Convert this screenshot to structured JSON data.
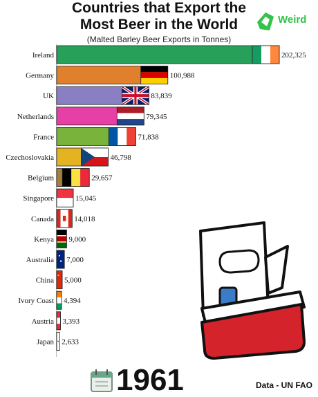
{
  "header": {
    "title_line1": "Countries that Export the",
    "title_line2": "Most Beer in the World",
    "subtitle": "(Malted Barley Beer Exports in Tonnes)",
    "logo_text": "Weird"
  },
  "footer": {
    "year": "1961",
    "source": "Data - UN FAO"
  },
  "icons": {
    "calendar": "calendar-icon",
    "cooler": "beer-cooler-illustration",
    "logo": "leaf-logo-icon"
  },
  "chart_data": {
    "type": "bar",
    "orientation": "horizontal",
    "title": "Countries that Export the Most Beer in the World",
    "subtitle": "(Malted Barley Beer Exports in Tonnes)",
    "xlim": [
      0,
      202325
    ],
    "categories": [
      "Ireland",
      "Germany",
      "UK",
      "Netherlands",
      "France",
      "Czechoslovakia",
      "Belgium",
      "Singapore",
      "Canada",
      "Kenya",
      "Australia",
      "China",
      "Ivory Coast",
      "Austria",
      "Japan"
    ],
    "values": [
      202325,
      100988,
      83839,
      79345,
      71838,
      46798,
      29657,
      15045,
      14018,
      9000,
      7000,
      5000,
      4394,
      3393,
      2633
    ],
    "value_labels": [
      "202,325",
      "100,988",
      "83,839",
      "79,345",
      "71,838",
      "46,798",
      "29,657",
      "15,045",
      "14,018",
      "9,000",
      "7,000",
      "5,000",
      "4,394",
      "3,393",
      "2,633"
    ],
    "bar_colors": [
      "#27a05a",
      "#e07f2c",
      "#8b7fc4",
      "#e63fa6",
      "#7ab33c",
      "#e3b321",
      "#a87f3a",
      "#ffffff",
      "#ffffff",
      "#ffffff",
      "#ffffff",
      "#ffffff",
      "#ffffff",
      "#ffffff",
      "#ffffff"
    ],
    "flags": [
      "ireland",
      "germany",
      "uk",
      "netherlands",
      "france",
      "czechoslovakia",
      "belgium",
      "singapore",
      "canada",
      "kenya",
      "australia",
      "china",
      "ivory-coast",
      "austria",
      "japan"
    ]
  }
}
